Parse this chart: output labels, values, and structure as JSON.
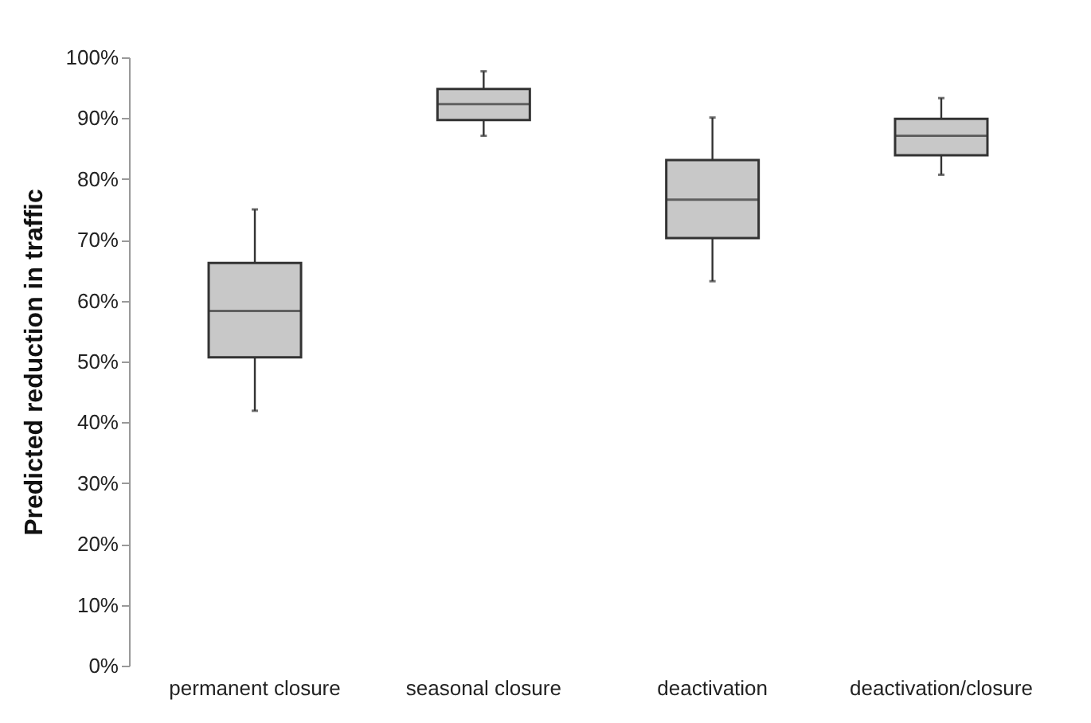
{
  "chart_data": {
    "type": "box",
    "ylabel": "Predicted reduction in traffic",
    "categories": [
      "permanent closure",
      "seasonal closure",
      "deactivation",
      "deactivation/closure"
    ],
    "boxes": [
      {
        "low": 41.9,
        "q1": 50.7,
        "median": 58.3,
        "q3": 66.2,
        "high": 75.0
      },
      {
        "low": 87.1,
        "q1": 89.7,
        "median": 92.3,
        "q3": 94.8,
        "high": 97.7
      },
      {
        "low": 63.2,
        "q1": 70.3,
        "median": 76.6,
        "q3": 83.1,
        "high": 90.1
      },
      {
        "low": 80.7,
        "q1": 83.9,
        "median": 87.1,
        "q3": 89.9,
        "high": 93.3
      }
    ],
    "color": "#c8c8c8",
    "ylim": [
      0,
      100
    ],
    "yticks": [
      {
        "value": 0,
        "label": "0%"
      },
      {
        "value": 10,
        "label": "10%"
      },
      {
        "value": 20,
        "label": "20%"
      },
      {
        "value": 30,
        "label": "30%"
      },
      {
        "value": 40,
        "label": "40%"
      },
      {
        "value": 50,
        "label": "50%"
      },
      {
        "value": 60,
        "label": "60%"
      },
      {
        "value": 70,
        "label": "70%"
      },
      {
        "value": 80,
        "label": "80%"
      },
      {
        "value": 90,
        "label": "90%"
      },
      {
        "value": 100,
        "label": "100%"
      }
    ],
    "grid": false
  }
}
